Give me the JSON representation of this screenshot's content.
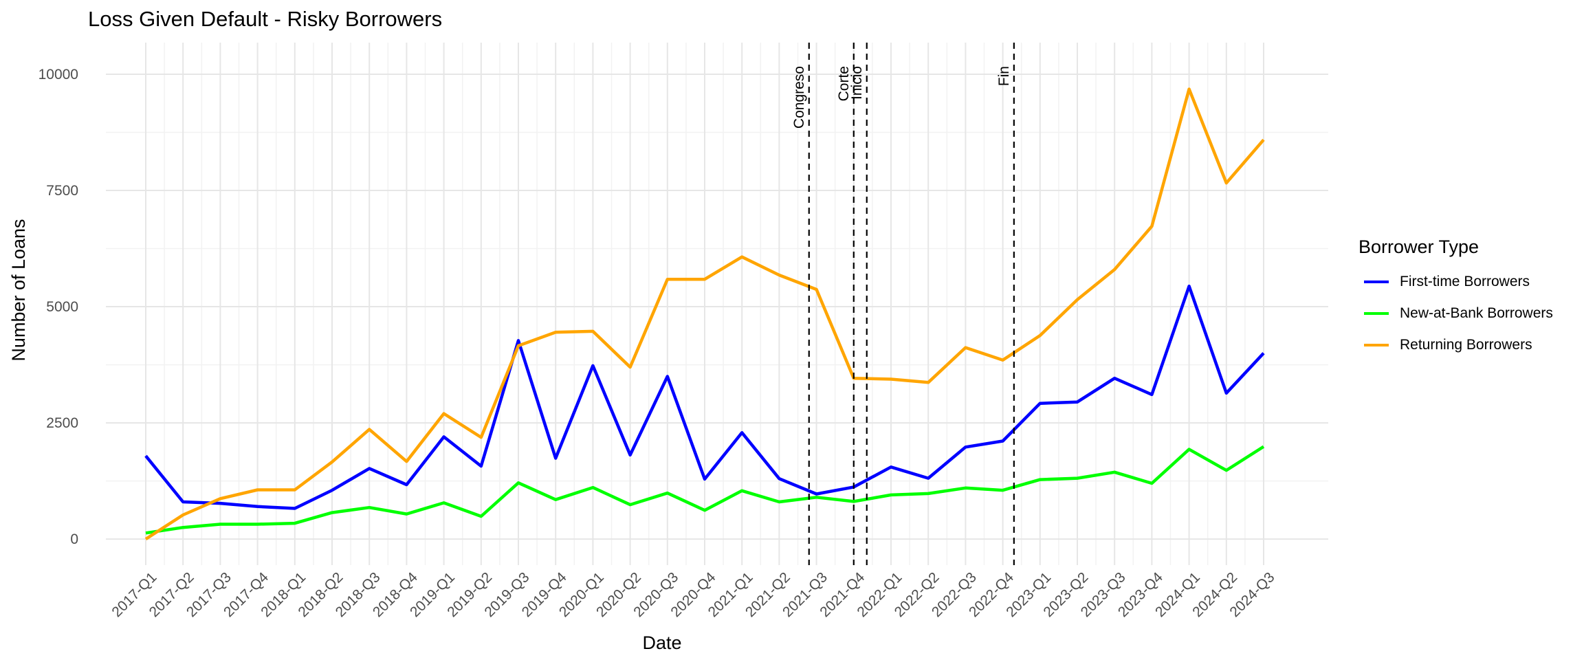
{
  "chart_data": {
    "type": "line",
    "title": "Loss Given Default - Risky Borrowers",
    "xlabel": "Date",
    "ylabel": "Number of Loans",
    "ylim": [
      -560,
      10680
    ],
    "y_ticks": [
      0,
      2500,
      5000,
      7500,
      10000
    ],
    "grid": true,
    "legend_position": "right",
    "legend_title": "Borrower Type",
    "categories": [
      "2017-Q1",
      "2017-Q2",
      "2017-Q3",
      "2017-Q4",
      "2018-Q1",
      "2018-Q2",
      "2018-Q3",
      "2018-Q4",
      "2019-Q1",
      "2019-Q2",
      "2019-Q3",
      "2019-Q4",
      "2020-Q1",
      "2020-Q2",
      "2020-Q3",
      "2020-Q4",
      "2021-Q1",
      "2021-Q2",
      "2021-Q3",
      "2021-Q4",
      "2022-Q1",
      "2022-Q2",
      "2022-Q3",
      "2022-Q4",
      "2023-Q1",
      "2023-Q2",
      "2023-Q3",
      "2023-Q4",
      "2024-Q1",
      "2024-Q2",
      "2024-Q3"
    ],
    "series": [
      {
        "name": "First-time Borrowers",
        "color": "#0000FF",
        "values": [
          1790,
          800,
          770,
          700,
          660,
          1050,
          1520,
          1170,
          2200,
          1570,
          4270,
          1740,
          3730,
          1810,
          3500,
          1290,
          2290,
          1300,
          970,
          1120,
          1550,
          1310,
          1980,
          2110,
          2920,
          2950,
          3460,
          3110,
          5440,
          3140,
          4000
        ]
      },
      {
        "name": "New-at-Bank Borrowers",
        "color": "#00FF00",
        "values": [
          130,
          250,
          320,
          320,
          340,
          570,
          680,
          540,
          780,
          490,
          1210,
          850,
          1110,
          740,
          990,
          620,
          1040,
          800,
          900,
          810,
          950,
          980,
          1100,
          1050,
          1280,
          1310,
          1440,
          1200,
          1930,
          1480,
          1990
        ]
      },
      {
        "name": "Returning Borrowers",
        "color": "#FFA500",
        "values": [
          0,
          520,
          870,
          1060,
          1060,
          1660,
          2360,
          1670,
          2700,
          2190,
          4160,
          4450,
          4470,
          3700,
          5590,
          5590,
          6070,
          5680,
          5370,
          3460,
          3440,
          3370,
          4120,
          3850,
          4380,
          5150,
          5800,
          6730,
          9680,
          7660,
          8590
        ]
      }
    ],
    "vlines": [
      {
        "label": "Congreso",
        "x": 17.8
      },
      {
        "label": "Corte",
        "x": 19.0
      },
      {
        "label": "Inicio",
        "x": 19.35
      },
      {
        "label": "Fin",
        "x": 23.3
      }
    ]
  }
}
